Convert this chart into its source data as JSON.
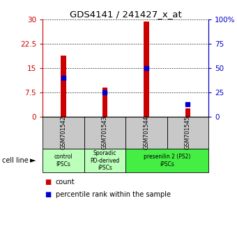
{
  "title": "GDS4141 / 241427_x_at",
  "samples": [
    "GSM701542",
    "GSM701543",
    "GSM701544",
    "GSM701545"
  ],
  "counts": [
    19.0,
    9.0,
    29.5,
    2.5
  ],
  "percentile_ranks": [
    40,
    25,
    50,
    13
  ],
  "ylim_left": [
    0,
    30
  ],
  "ylim_right": [
    0,
    100
  ],
  "yticks_left": [
    0,
    7.5,
    15,
    22.5,
    30
  ],
  "yticks_right": [
    0,
    25,
    50,
    75,
    100
  ],
  "ytick_labels_left": [
    "0",
    "7.5",
    "15",
    "22.5",
    "30"
  ],
  "ytick_labels_right": [
    "0",
    "25",
    "50",
    "75",
    "100%"
  ],
  "bar_color": "#cc0000",
  "percentile_color": "#0000cc",
  "bar_width": 0.12,
  "left_axis_color": "#cc0000",
  "right_axis_color": "#0000cc",
  "bg_label": "#c8c8c8",
  "group_configs": [
    {
      "start": 0,
      "end": 1,
      "label": "control\nIPSCs",
      "color": "#bbffbb"
    },
    {
      "start": 1,
      "end": 2,
      "label": "Sporadic\nPD-derived\niPSCs",
      "color": "#bbffbb"
    },
    {
      "start": 2,
      "end": 4,
      "label": "presenilin 2 (PS2)\niPSCs",
      "color": "#44ee44"
    }
  ],
  "cell_line_label": "cell line",
  "legend_count_label": "count",
  "legend_percentile_label": "percentile rank within the sample"
}
